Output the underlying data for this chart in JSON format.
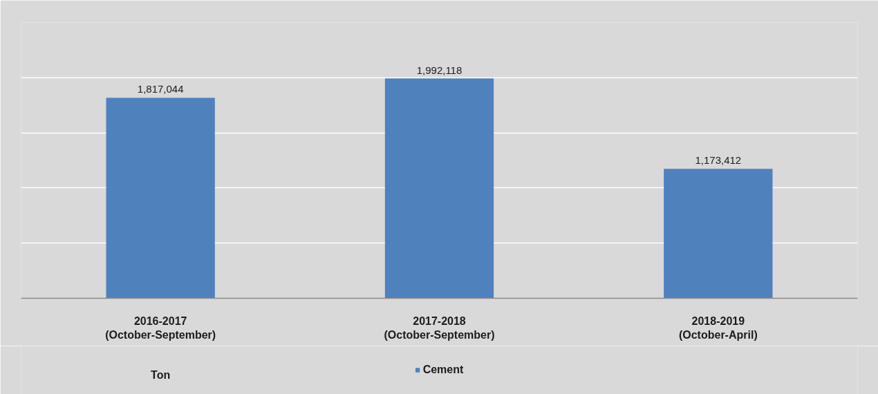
{
  "chart_data": {
    "type": "bar",
    "categories": [
      "2016-2017 (October-September)",
      "2017-2018 (October-September)",
      "2018-2019 (October-April)"
    ],
    "series": [
      {
        "name": "Cement",
        "color": "#4f81bd",
        "values": [
          1817044,
          1992118,
          1173412
        ],
        "value_labels": [
          "1,817,044",
          "1,992,118",
          "1,173,412"
        ]
      }
    ],
    "ylim": [
      0,
      2500000
    ],
    "yticks": [
      {
        "value": 0,
        "label": null
      },
      {
        "value": 500000,
        "label": null
      },
      {
        "value": 1000000,
        "label": null
      },
      {
        "value": 1500000,
        "label": null
      },
      {
        "value": 2000000,
        "label": null
      },
      {
        "value": 2500000,
        "label": null
      }
    ],
    "grid": "y",
    "legend": "bottom",
    "tick_labels": "x",
    "annotations": [
      "Ton"
    ]
  }
}
